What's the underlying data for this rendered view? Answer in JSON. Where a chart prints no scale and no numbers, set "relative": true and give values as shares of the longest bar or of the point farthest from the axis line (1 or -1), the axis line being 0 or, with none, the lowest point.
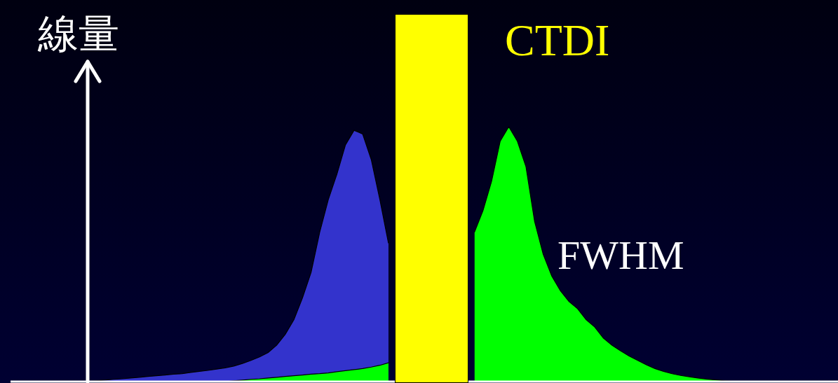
{
  "chart_data": {
    "type": "area",
    "relative": true,
    "tick_labels": false,
    "ylabel": "線量",
    "annotations": [
      "CTDI",
      "FWHM"
    ],
    "categories": [
      null,
      null,
      null,
      null,
      null,
      null,
      null,
      null,
      null,
      null,
      null,
      null,
      null,
      null,
      null,
      null,
      null,
      null,
      null,
      null,
      null,
      null,
      null,
      null,
      null,
      null,
      null,
      null,
      null,
      null,
      null,
      null,
      null,
      null,
      null,
      null,
      null,
      null,
      null,
      null,
      null,
      null,
      null,
      null,
      null,
      null,
      null,
      null,
      null,
      null,
      null,
      null,
      null,
      null,
      null,
      null,
      null,
      null,
      null,
      null,
      null,
      null,
      null,
      null,
      null,
      null,
      null,
      null,
      null,
      null,
      null,
      null,
      null,
      null,
      null,
      null,
      null,
      null,
      null,
      null,
      null,
      null,
      null,
      null,
      null,
      null,
      null
    ],
    "series": [
      {
        "color": "#3333cc",
        "values": [
          0,
          0.003,
          0.006,
          0.009,
          0.011,
          0.014,
          0.017,
          0.02,
          0.023,
          0.026,
          0.029,
          0.031,
          0.036,
          0.04,
          0.044,
          0.049,
          0.054,
          0.061,
          0.071,
          0.083,
          0.097,
          0.114,
          0.143,
          0.186,
          0.243,
          0.329,
          0.429,
          0.586,
          0.714,
          0.814,
          0.929,
          0.986,
          0.971,
          0.871,
          0.714,
          0.543,
          null,
          null,
          null,
          null,
          null,
          null,
          null,
          null,
          null,
          null,
          null,
          null,
          null,
          null,
          null,
          null,
          null,
          null,
          null,
          null,
          null,
          null,
          null,
          null,
          null,
          null,
          null,
          null,
          null,
          null,
          null,
          null,
          null,
          null,
          null,
          null,
          null,
          null,
          null,
          null,
          null,
          null,
          null,
          null,
          null,
          null,
          null,
          null,
          null,
          null,
          null
        ]
      },
      {
        "color": "#00ff00",
        "values": [
          0,
          0,
          0,
          0,
          0,
          0,
          0,
          0,
          0,
          0,
          0,
          0,
          0,
          0,
          0,
          0,
          0,
          0.003,
          0.006,
          0.009,
          0.011,
          0.014,
          0.017,
          0.02,
          0.023,
          0.026,
          0.029,
          0.031,
          0.034,
          0.039,
          0.043,
          0.047,
          0.051,
          0.057,
          0.064,
          0.074,
          null,
          null,
          null,
          null,
          null,
          null,
          null,
          null,
          null,
          0.586,
          0.671,
          0.786,
          0.943,
          1,
          0.943,
          0.843,
          0.629,
          0.5,
          0.414,
          0.357,
          0.314,
          0.286,
          0.243,
          0.214,
          0.171,
          0.143,
          0.121,
          0.1,
          0.083,
          0.066,
          0.051,
          0.04,
          0.031,
          0.024,
          0.019,
          0.014,
          0.01,
          0.007,
          0.004,
          0.001,
          0,
          0,
          0,
          0,
          0,
          0,
          0,
          0,
          0,
          0,
          0
        ]
      }
    ]
  }
}
